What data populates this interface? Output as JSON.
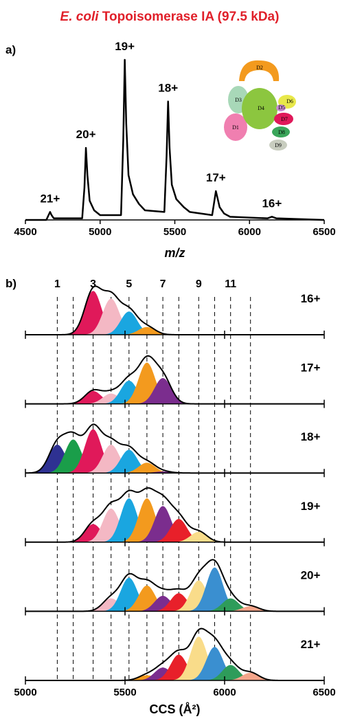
{
  "title_italic": "E. coli",
  "title": "Topoisomerase IA (97.5 kDa)",
  "inset": {
    "labels": [
      "D1",
      "D2",
      "D3",
      "D4",
      "D5",
      "D6",
      "D7",
      "D8",
      "D9"
    ]
  },
  "chart_data": [
    {
      "type": "line",
      "panel_label": "a)",
      "xlabel": "m/z",
      "color": "#000000",
      "x": [
        4500,
        4640,
        4655,
        4665,
        4675,
        4690,
        4880,
        4895,
        4905,
        4915,
        4930,
        4960,
        5000,
        5140,
        5155,
        5165,
        5175,
        5190,
        5220,
        5260,
        5300,
        5430,
        5445,
        5455,
        5465,
        5480,
        5510,
        5560,
        5600,
        5750,
        5765,
        5775,
        5785,
        5800,
        5830,
        5870,
        6120,
        6150,
        6180,
        6500
      ],
      "values": [
        0,
        0,
        3,
        5,
        3,
        1,
        1,
        20,
        45,
        28,
        12,
        6,
        3,
        3,
        50,
        100,
        60,
        28,
        16,
        10,
        6,
        5,
        40,
        74,
        45,
        22,
        13,
        8,
        5,
        3,
        12,
        18,
        14,
        8,
        4,
        2,
        1,
        2,
        1,
        0
      ],
      "xlim": [
        4500,
        6500
      ],
      "xticks": [
        4500,
        5000,
        5500,
        6000,
        6500
      ],
      "ylim": [
        0,
        100
      ],
      "peak_labels": [
        {
          "label": "21+",
          "x": 4665,
          "y": 5
        },
        {
          "label": "20+",
          "x": 4905,
          "y": 45
        },
        {
          "label": "19+",
          "x": 5165,
          "y": 100
        },
        {
          "label": "18+",
          "x": 5455,
          "y": 74
        },
        {
          "label": "17+",
          "x": 5775,
          "y": 18
        },
        {
          "label": "16+",
          "x": 6150,
          "y": 2
        }
      ]
    },
    {
      "type": "ridge",
      "panel_label": "b)",
      "xlabel": "CCS (Å²)",
      "xlim": [
        5000,
        6500
      ],
      "xticks": [
        5000,
        5500,
        6000,
        6500
      ],
      "ylim": [
        0,
        1
      ],
      "conformer_positions": [
        5160,
        5240,
        5340,
        5430,
        5520,
        5610,
        5690,
        5770,
        5870,
        5950,
        6030,
        6130
      ],
      "conformer_labels": [
        "1",
        null,
        "3",
        null,
        "5",
        null,
        "7",
        null,
        "9",
        null,
        "11",
        null
      ],
      "conformer_colors": [
        "#2e3192",
        "#1a9e4a",
        "#e0195a",
        "#f4b8c4",
        "#1aa6e0",
        "#f39a1e",
        "#7b2d8e",
        "#e8202a",
        "#f9dc8a",
        "#3a8fd0",
        "#2e9c5a",
        "#f4a58a"
      ],
      "series": [
        {
          "name": "16+",
          "values": [
            0,
            0,
            0.85,
            0.7,
            0.45,
            0.15,
            0,
            0,
            0,
            0,
            0,
            0
          ]
        },
        {
          "name": "17+",
          "values": [
            0,
            0,
            0.25,
            0.2,
            0.45,
            0.8,
            0.5,
            0,
            0,
            0,
            0,
            0
          ]
        },
        {
          "name": "18+",
          "values": [
            0.55,
            0.65,
            0.85,
            0.55,
            0.45,
            0.2,
            0.03,
            0,
            0,
            0,
            0,
            0
          ]
        },
        {
          "name": "19+",
          "values": [
            0,
            0,
            0.35,
            0.65,
            0.85,
            0.85,
            0.7,
            0.45,
            0.2,
            0,
            0,
            0
          ]
        },
        {
          "name": "20+",
          "values": [
            0,
            0,
            0,
            0.25,
            0.65,
            0.5,
            0.3,
            0.35,
            0.6,
            0.85,
            0.25,
            0.1
          ]
        },
        {
          "name": "21+",
          "values": [
            0,
            0,
            0,
            0,
            0,
            0.1,
            0.25,
            0.5,
            0.85,
            0.65,
            0.3,
            0.15
          ]
        }
      ]
    }
  ]
}
